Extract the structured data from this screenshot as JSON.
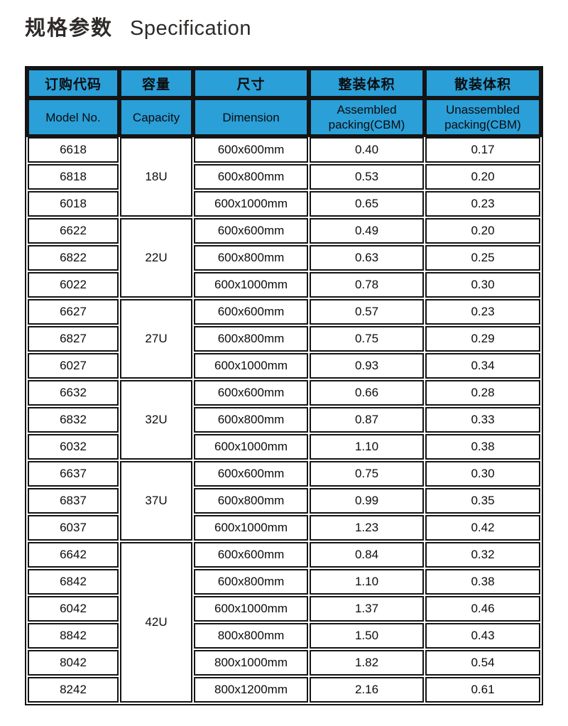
{
  "title": {
    "zh": "规格参数",
    "en": "Specification"
  },
  "colors": {
    "header_blue": "#2a9fd8",
    "border_black": "#141414",
    "text": "#0c0c0c"
  },
  "table": {
    "headers": [
      {
        "zh": "订购代码",
        "en": "Model No."
      },
      {
        "zh": "容量",
        "en": "Capacity"
      },
      {
        "zh": "尺寸",
        "en": "Dimension"
      },
      {
        "zh": "整装体积",
        "en": "Assembled packing(CBM)"
      },
      {
        "zh": "散装体积",
        "en": "Unassembled packing(CBM)"
      }
    ],
    "groups": [
      {
        "capacity": "18U",
        "rows": [
          {
            "model": "6618",
            "dimension": "600x600mm",
            "assembled": "0.40",
            "unassembled": "0.17"
          },
          {
            "model": "6818",
            "dimension": "600x800mm",
            "assembled": "0.53",
            "unassembled": "0.20"
          },
          {
            "model": "6018",
            "dimension": "600x1000mm",
            "assembled": "0.65",
            "unassembled": "0.23"
          }
        ]
      },
      {
        "capacity": "22U",
        "rows": [
          {
            "model": "6622",
            "dimension": "600x600mm",
            "assembled": "0.49",
            "unassembled": "0.20"
          },
          {
            "model": "6822",
            "dimension": "600x800mm",
            "assembled": "0.63",
            "unassembled": "0.25"
          },
          {
            "model": "6022",
            "dimension": "600x1000mm",
            "assembled": "0.78",
            "unassembled": "0.30"
          }
        ]
      },
      {
        "capacity": "27U",
        "rows": [
          {
            "model": "6627",
            "dimension": "600x600mm",
            "assembled": "0.57",
            "unassembled": "0.23"
          },
          {
            "model": "6827",
            "dimension": "600x800mm",
            "assembled": "0.75",
            "unassembled": "0.29"
          },
          {
            "model": "6027",
            "dimension": "600x1000mm",
            "assembled": "0.93",
            "unassembled": "0.34"
          }
        ]
      },
      {
        "capacity": "32U",
        "rows": [
          {
            "model": "6632",
            "dimension": "600x600mm",
            "assembled": "0.66",
            "unassembled": "0.28"
          },
          {
            "model": "6832",
            "dimension": "600x800mm",
            "assembled": "0.87",
            "unassembled": "0.33"
          },
          {
            "model": "6032",
            "dimension": "600x1000mm",
            "assembled": "1.10",
            "unassembled": "0.38"
          }
        ]
      },
      {
        "capacity": "37U",
        "rows": [
          {
            "model": "6637",
            "dimension": "600x600mm",
            "assembled": "0.75",
            "unassembled": "0.30"
          },
          {
            "model": "6837",
            "dimension": "600x800mm",
            "assembled": "0.99",
            "unassembled": "0.35"
          },
          {
            "model": "6037",
            "dimension": "600x1000mm",
            "assembled": "1.23",
            "unassembled": "0.42"
          }
        ]
      },
      {
        "capacity": "42U",
        "rows": [
          {
            "model": "6642",
            "dimension": "600x600mm",
            "assembled": "0.84",
            "unassembled": "0.32"
          },
          {
            "model": "6842",
            "dimension": "600x800mm",
            "assembled": "1.10",
            "unassembled": "0.38"
          },
          {
            "model": "6042",
            "dimension": "600x1000mm",
            "assembled": "1.37",
            "unassembled": "0.46"
          },
          {
            "model": "8842",
            "dimension": "800x800mm",
            "assembled": "1.50",
            "unassembled": "0.43"
          },
          {
            "model": "8042",
            "dimension": "800x1000mm",
            "assembled": "1.82",
            "unassembled": "0.54"
          },
          {
            "model": "8242",
            "dimension": "800x1200mm",
            "assembled": "2.16",
            "unassembled": "0.61"
          }
        ]
      }
    ]
  }
}
